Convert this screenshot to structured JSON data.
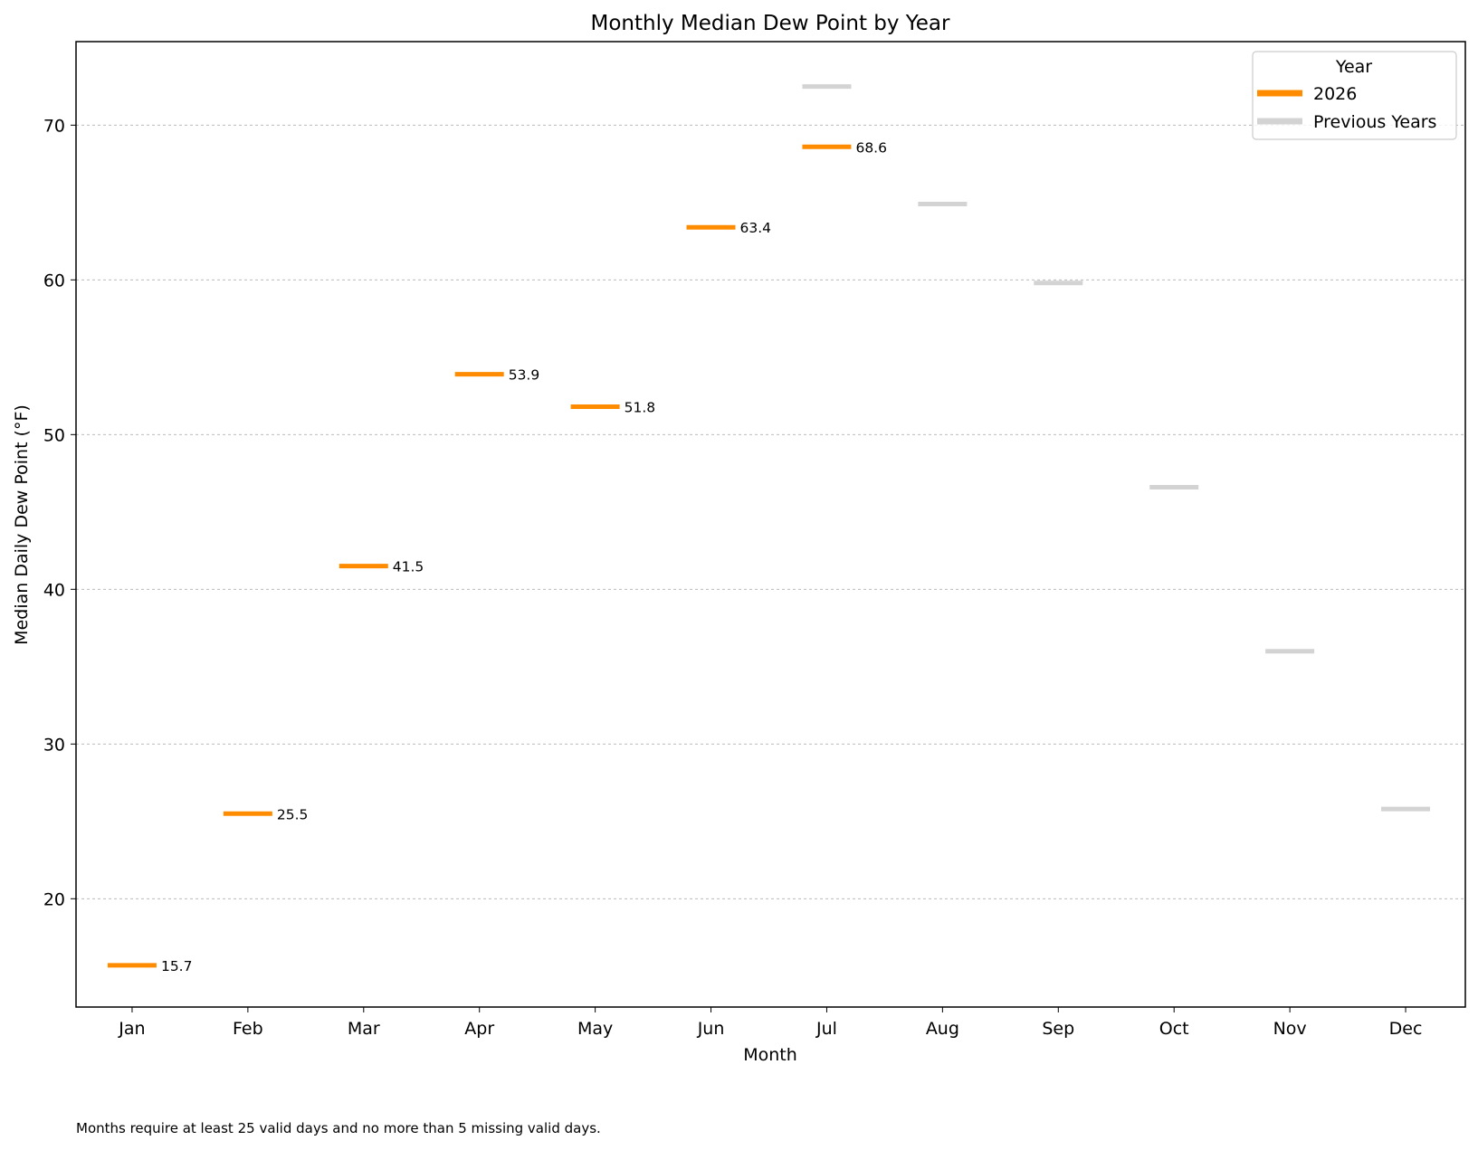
{
  "chart_data": {
    "type": "line",
    "title": "Monthly Median Dew Point by Year",
    "xlabel": "Month",
    "ylabel": "Median Daily Dew Point (°F)",
    "categories": [
      "Jan",
      "Feb",
      "Mar",
      "Apr",
      "May",
      "Jun",
      "Jul",
      "Aug",
      "Sep",
      "Oct",
      "Nov",
      "Dec"
    ],
    "ylim": [
      13,
      75.4
    ],
    "yticks": [
      20,
      30,
      40,
      50,
      60,
      70
    ],
    "grid": "horizontal dashed",
    "legend": {
      "title": "Year",
      "placement": "top-right"
    },
    "series": [
      {
        "name": "2026",
        "color": "#ff8c00",
        "values": [
          15.7,
          25.5,
          41.5,
          53.9,
          51.8,
          63.4,
          68.6,
          null,
          null,
          null,
          null,
          null
        ],
        "labels": [
          "15.7",
          "25.5",
          "41.5",
          "53.9",
          "51.8",
          "63.4",
          "68.6",
          null,
          null,
          null,
          null,
          null
        ]
      },
      {
        "name": "Previous Years",
        "color": "#d3d3d3",
        "values": [
          null,
          null,
          null,
          null,
          null,
          null,
          72.5,
          64.9,
          59.8,
          46.6,
          36.0,
          25.8
        ]
      }
    ]
  },
  "footnote": "Months require at least 25 valid days and no more than 5 missing valid days."
}
